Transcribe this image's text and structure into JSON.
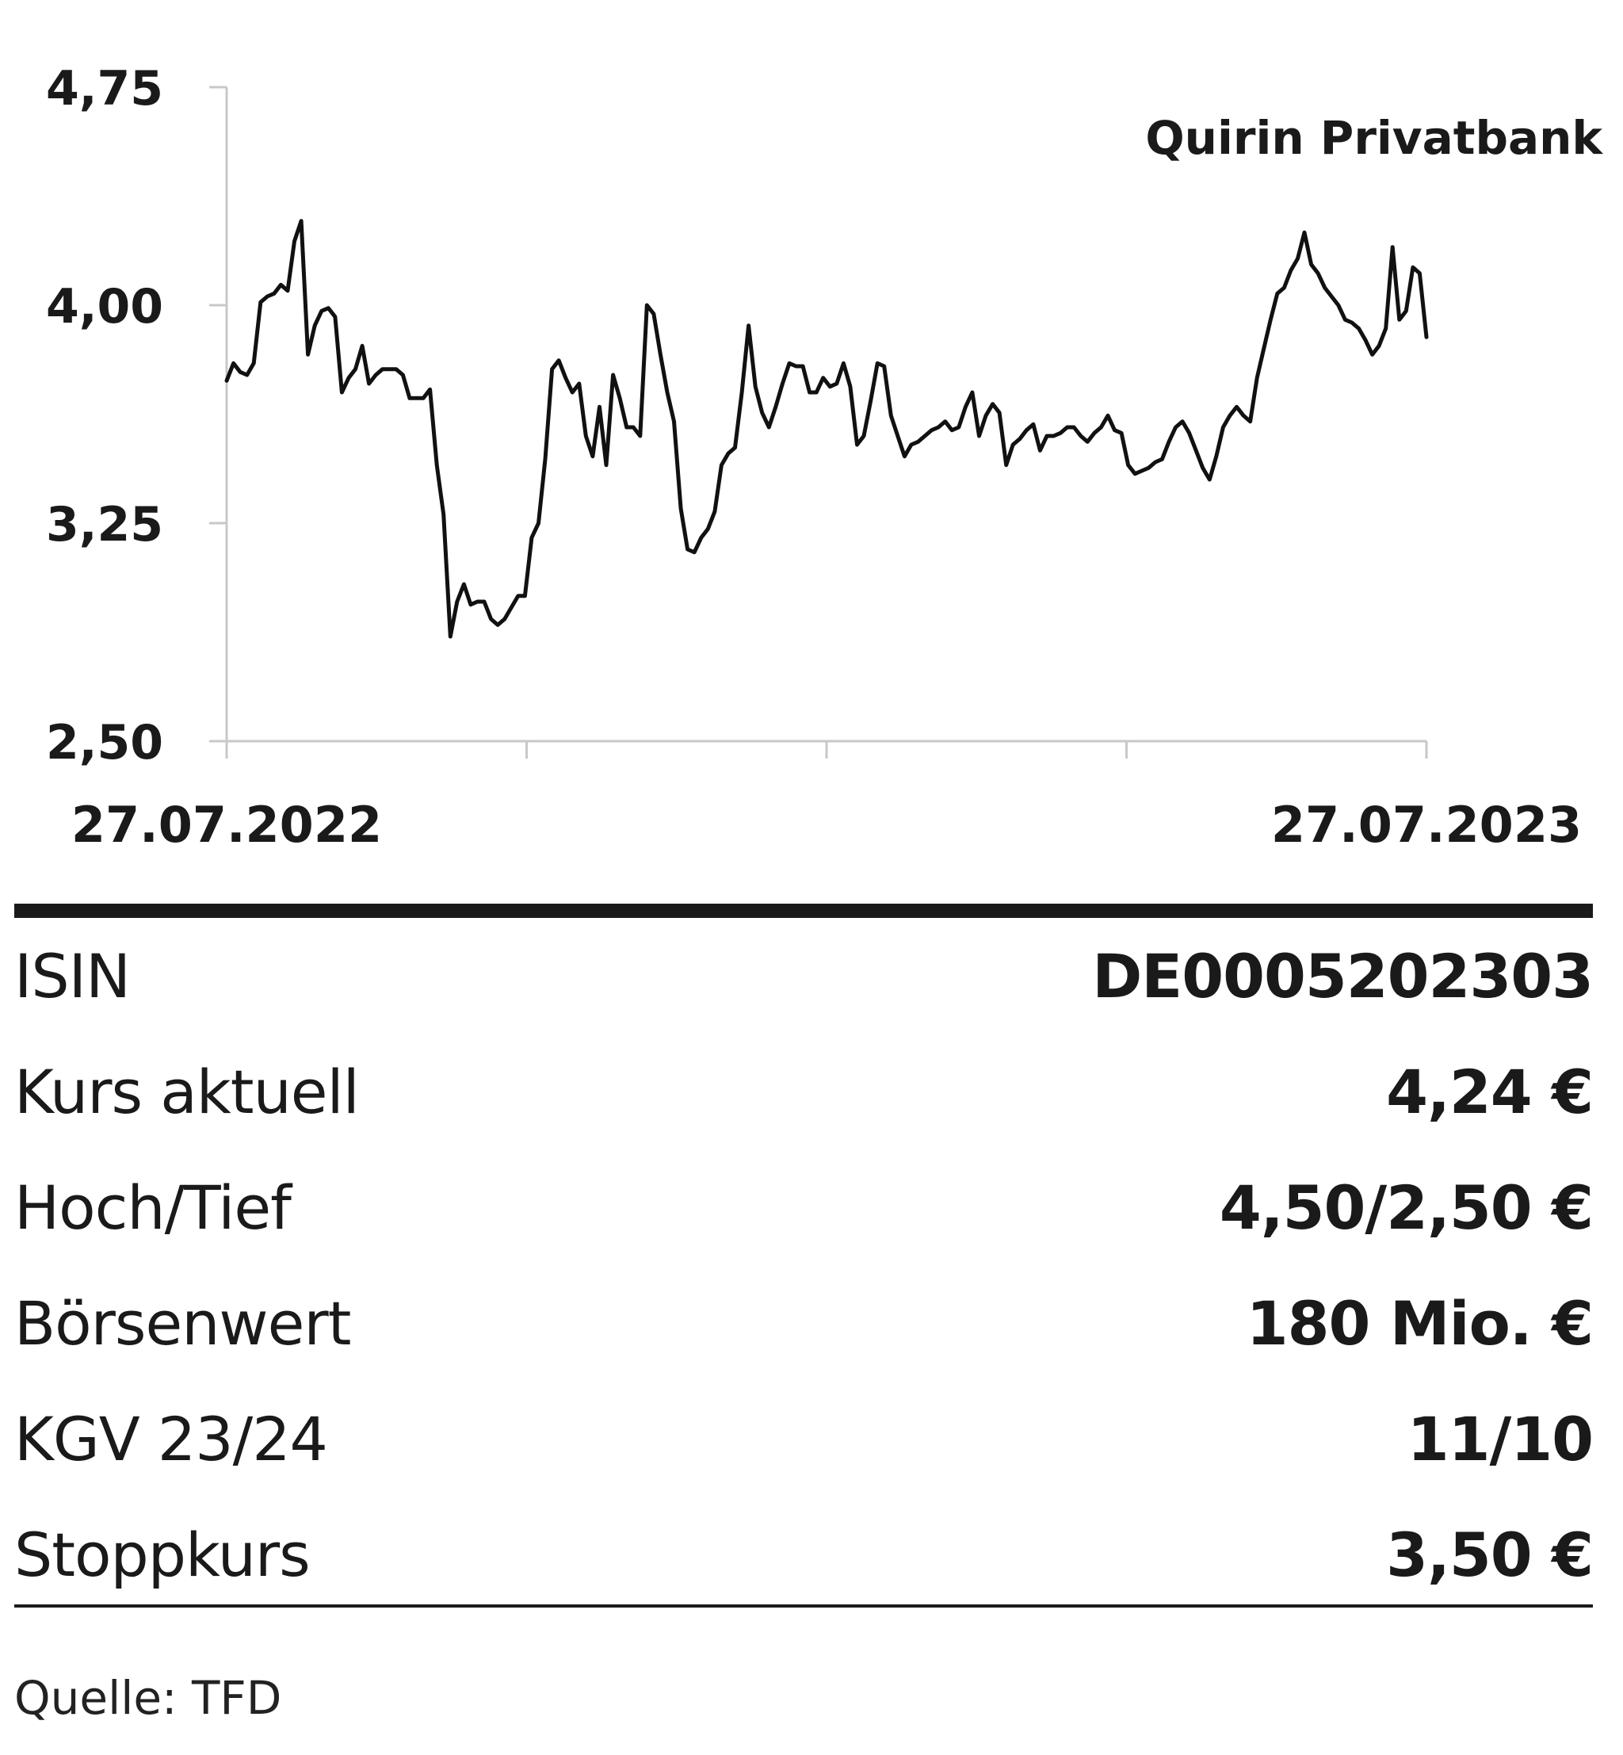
{
  "chart_data": {
    "type": "line",
    "title": "Quirin Privatbank",
    "x_start_label": "27.07.2022",
    "x_end_label": "27.07.2023",
    "y_ticks": [
      "4,75",
      "4,00",
      "3,25",
      "2,50"
    ],
    "ylim": [
      2.5,
      4.75
    ],
    "grid": false,
    "series": [
      {
        "values": [
          3.74,
          3.8,
          3.77,
          3.76,
          3.8,
          4.01,
          4.03,
          4.04,
          4.07,
          4.05,
          4.22,
          4.29,
          3.83,
          3.93,
          3.98,
          3.99,
          3.96,
          3.7,
          3.75,
          3.78,
          3.86,
          3.73,
          3.76,
          3.78,
          3.78,
          3.78,
          3.76,
          3.68,
          3.68,
          3.68,
          3.71,
          3.45,
          3.28,
          2.86,
          2.98,
          3.04,
          2.97,
          2.98,
          2.98,
          2.92,
          2.9,
          2.92,
          2.96,
          3.0,
          3.0,
          3.2,
          3.25,
          3.47,
          3.78,
          3.81,
          3.75,
          3.7,
          3.73,
          3.55,
          3.48,
          3.65,
          3.45,
          3.76,
          3.68,
          3.58,
          3.58,
          3.55,
          4.0,
          3.97,
          3.83,
          3.7,
          3.6,
          3.3,
          3.16,
          3.15,
          3.2,
          3.23,
          3.29,
          3.45,
          3.49,
          3.51,
          3.7,
          3.93,
          3.72,
          3.63,
          3.58,
          3.65,
          3.73,
          3.8,
          3.79,
          3.79,
          3.7,
          3.7,
          3.75,
          3.72,
          3.73,
          3.8,
          3.72,
          3.52,
          3.55,
          3.67,
          3.8,
          3.79,
          3.62,
          3.55,
          3.48,
          3.52,
          3.53,
          3.55,
          3.57,
          3.58,
          3.6,
          3.57,
          3.58,
          3.65,
          3.7,
          3.55,
          3.62,
          3.66,
          3.63,
          3.45,
          3.52,
          3.54,
          3.57,
          3.59,
          3.5,
          3.55,
          3.55,
          3.56,
          3.58,
          3.58,
          3.55,
          3.53,
          3.56,
          3.58,
          3.62,
          3.57,
          3.56,
          3.45,
          3.42,
          3.43,
          3.44,
          3.46,
          3.47,
          3.53,
          3.58,
          3.6,
          3.56,
          3.5,
          3.44,
          3.4,
          3.48,
          3.58,
          3.62,
          3.65,
          3.62,
          3.6,
          3.75,
          3.85,
          3.95,
          4.04,
          4.06,
          4.12,
          4.16,
          4.25,
          4.14,
          4.11,
          4.06,
          4.03,
          4.0,
          3.95,
          3.94,
          3.92,
          3.88,
          3.83,
          3.86,
          3.92,
          4.2,
          3.95,
          3.98,
          4.13,
          4.11,
          3.89
        ]
      }
    ]
  },
  "table": {
    "rows": [
      {
        "label": "ISIN",
        "value": "DE0005202303"
      },
      {
        "label": "Kurs aktuell",
        "value": "4,24 €"
      },
      {
        "label": "Hoch/Tief",
        "value": "4,50/2,50 €"
      },
      {
        "label": "Börsenwert",
        "value": "180 Mio. €"
      },
      {
        "label": "KGV 23/24",
        "value": "11/10"
      },
      {
        "label": "Stoppkurs",
        "value": "3,50 €"
      }
    ]
  },
  "source": "Quelle: TFD"
}
